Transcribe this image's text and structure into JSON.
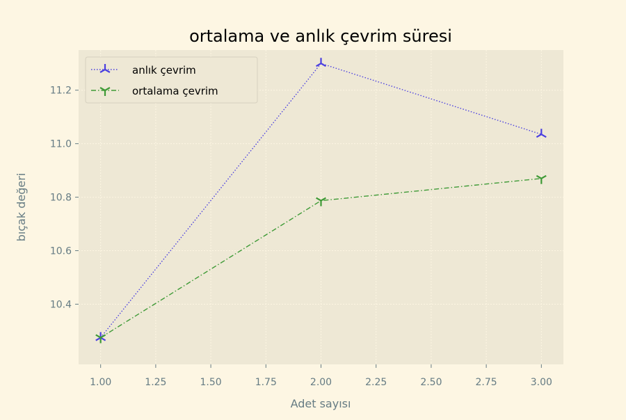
{
  "chart_data": {
    "type": "line",
    "title": "ortalama ve anlık çevrim süresi",
    "xlabel": "Adet sayısı",
    "ylabel": "bıçak değeri",
    "xlim": [
      0.9,
      3.1
    ],
    "ylim": [
      10.175,
      11.35
    ],
    "xticks": [
      1.0,
      1.25,
      1.5,
      1.75,
      2.0,
      2.25,
      2.5,
      2.75,
      3.0
    ],
    "xtick_labels": [
      "1.00",
      "1.25",
      "1.50",
      "1.75",
      "2.00",
      "2.25",
      "2.50",
      "2.75",
      "3.00"
    ],
    "yticks": [
      10.4,
      10.6,
      10.8,
      11.0,
      11.2
    ],
    "ytick_labels": [
      "10.4",
      "10.6",
      "10.8",
      "11.0",
      "11.2"
    ],
    "grid": true,
    "legend_position": "upper-left",
    "series": [
      {
        "name": "anlık çevrim",
        "color": "#4a3fe0",
        "linestyle": "dotted",
        "marker": "tri-up",
        "x": [
          1,
          2,
          3
        ],
        "y": [
          10.275,
          11.3,
          11.035
        ]
      },
      {
        "name": "ortalama çevrim",
        "color": "#3e9a36",
        "linestyle": "dashdot",
        "marker": "tri-down",
        "x": [
          1,
          2,
          3
        ],
        "y": [
          10.275,
          10.787,
          10.87
        ]
      }
    ]
  },
  "colors": {
    "figure_background": "#fdf6e3",
    "plot_background": "#eee8d5",
    "grid": "#fdf6e3",
    "axis_text": "#657b83"
  }
}
